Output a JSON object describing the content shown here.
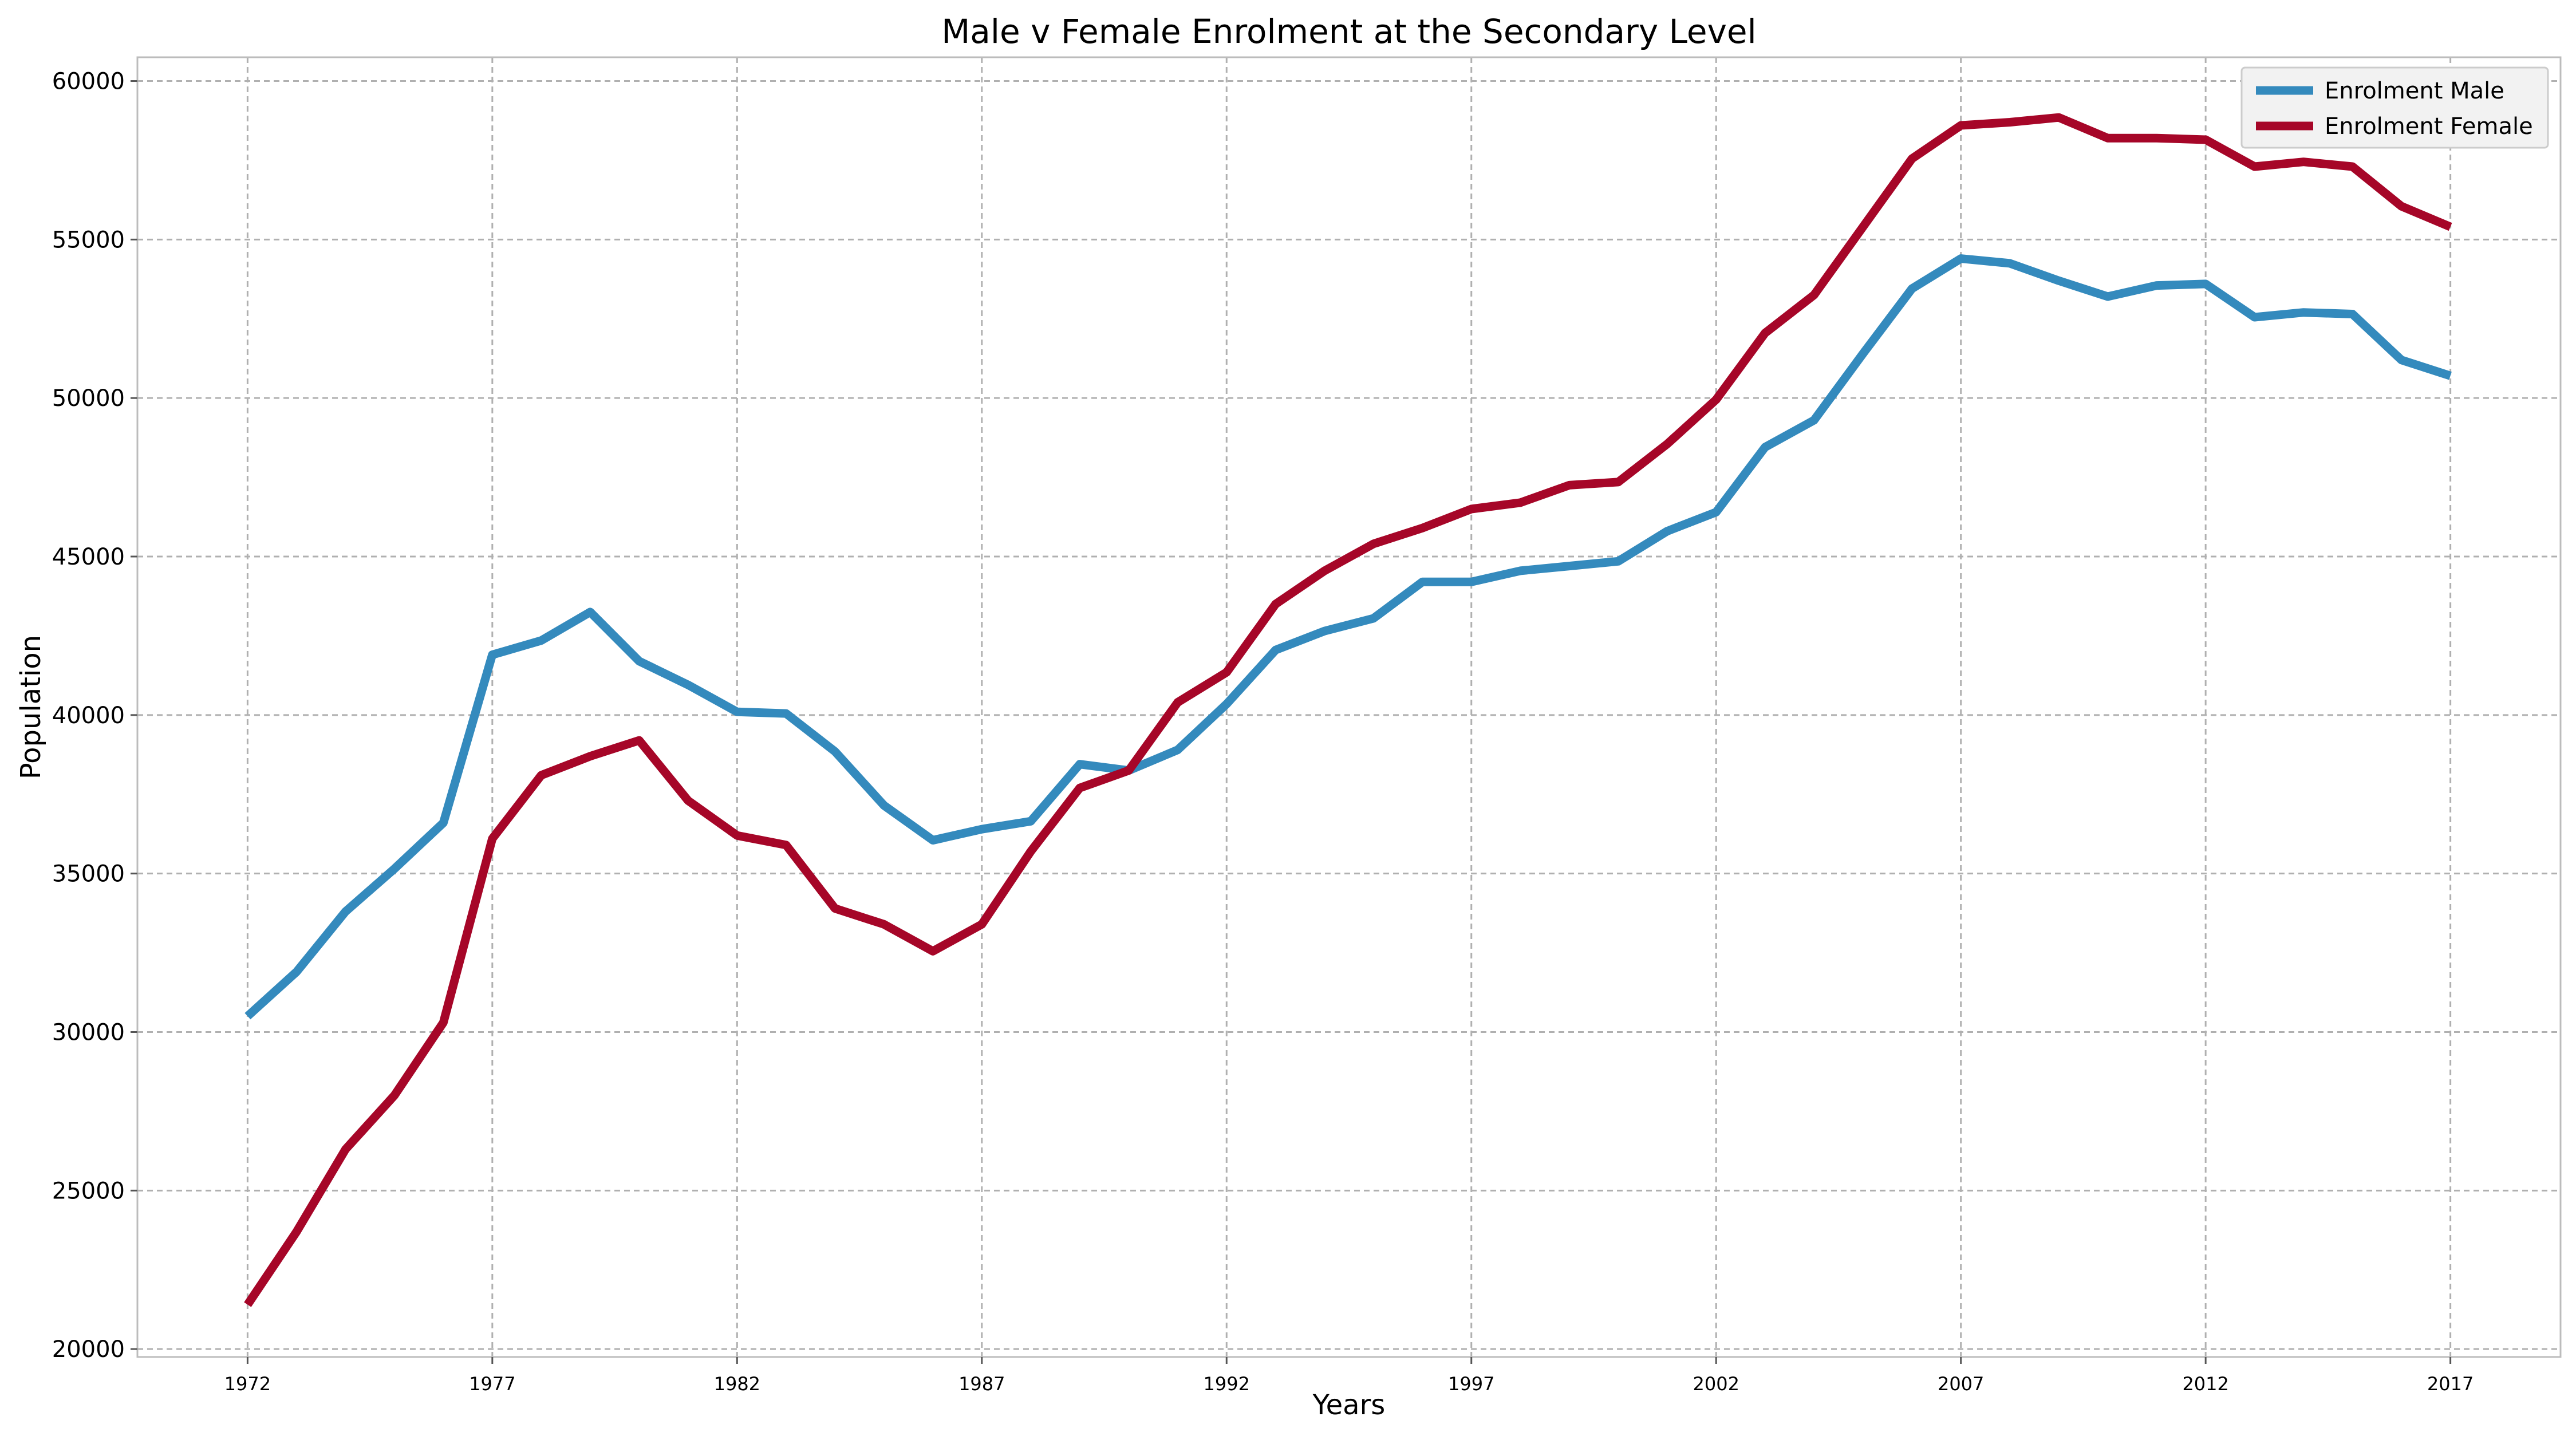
{
  "chart_data": {
    "type": "line",
    "title": "Male v Female Enrolment at the Secondary Level",
    "xlabel": "Years",
    "ylabel": "Population",
    "x": [
      1972,
      1973,
      1974,
      1975,
      1976,
      1977,
      1978,
      1979,
      1980,
      1981,
      1982,
      1983,
      1984,
      1985,
      1986,
      1987,
      1988,
      1989,
      1990,
      1991,
      1992,
      1993,
      1994,
      1995,
      1996,
      1997,
      1998,
      1999,
      2000,
      2001,
      2002,
      2003,
      2004,
      2005,
      2006,
      2007,
      2008,
      2009,
      2010,
      2011,
      2012,
      2013,
      2014,
      2015,
      2016,
      2017
    ],
    "xlim": [
      1969.75,
      2019.25
    ],
    "ylim": [
      19750,
      60750
    ],
    "xticks": [
      1972,
      1977,
      1982,
      1987,
      1992,
      1997,
      2002,
      2007,
      2012,
      2017
    ],
    "xtick_labels": [
      "1972",
      "1977",
      "1982",
      "1987",
      "1992",
      "1997",
      "2002",
      "2007",
      "2012",
      "2017"
    ],
    "yticks": [
      20000,
      25000,
      30000,
      35000,
      40000,
      45000,
      50000,
      55000,
      60000
    ],
    "ytick_labels": [
      "20000",
      "25000",
      "30000",
      "35000",
      "40000",
      "45000",
      "50000",
      "55000",
      "60000"
    ],
    "grid": true,
    "legend_position": "top-right",
    "series": [
      {
        "name": "Enrolment Male",
        "color": "#348abd",
        "values": [
          30500,
          31900,
          33800,
          35150,
          36600,
          41900,
          42350,
          43250,
          41700,
          40950,
          40100,
          40050,
          38850,
          37150,
          36050,
          36400,
          36650,
          38450,
          38250,
          38900,
          40350,
          42050,
          42650,
          43050,
          44200,
          44200,
          44550,
          44700,
          44850,
          45800,
          46400,
          48450,
          49300,
          51400,
          53450,
          54400,
          54250,
          53700,
          53200,
          53550,
          53600,
          52550,
          52700,
          52650,
          51200,
          50700
        ]
      },
      {
        "name": "Enrolment Female",
        "color": "#a60628",
        "values": [
          21400,
          23700,
          26300,
          28000,
          30300,
          36100,
          38100,
          38700,
          39200,
          37300,
          36200,
          35900,
          33900,
          33400,
          32550,
          33400,
          35700,
          37700,
          38250,
          40400,
          41350,
          43500,
          44550,
          45400,
          45900,
          46500,
          46700,
          47250,
          47350,
          48550,
          49950,
          52050,
          53250,
          55400,
          57550,
          58600,
          58700,
          58850,
          58200,
          58200,
          58150,
          57300,
          57450,
          57300,
          56050,
          55400
        ]
      }
    ]
  }
}
